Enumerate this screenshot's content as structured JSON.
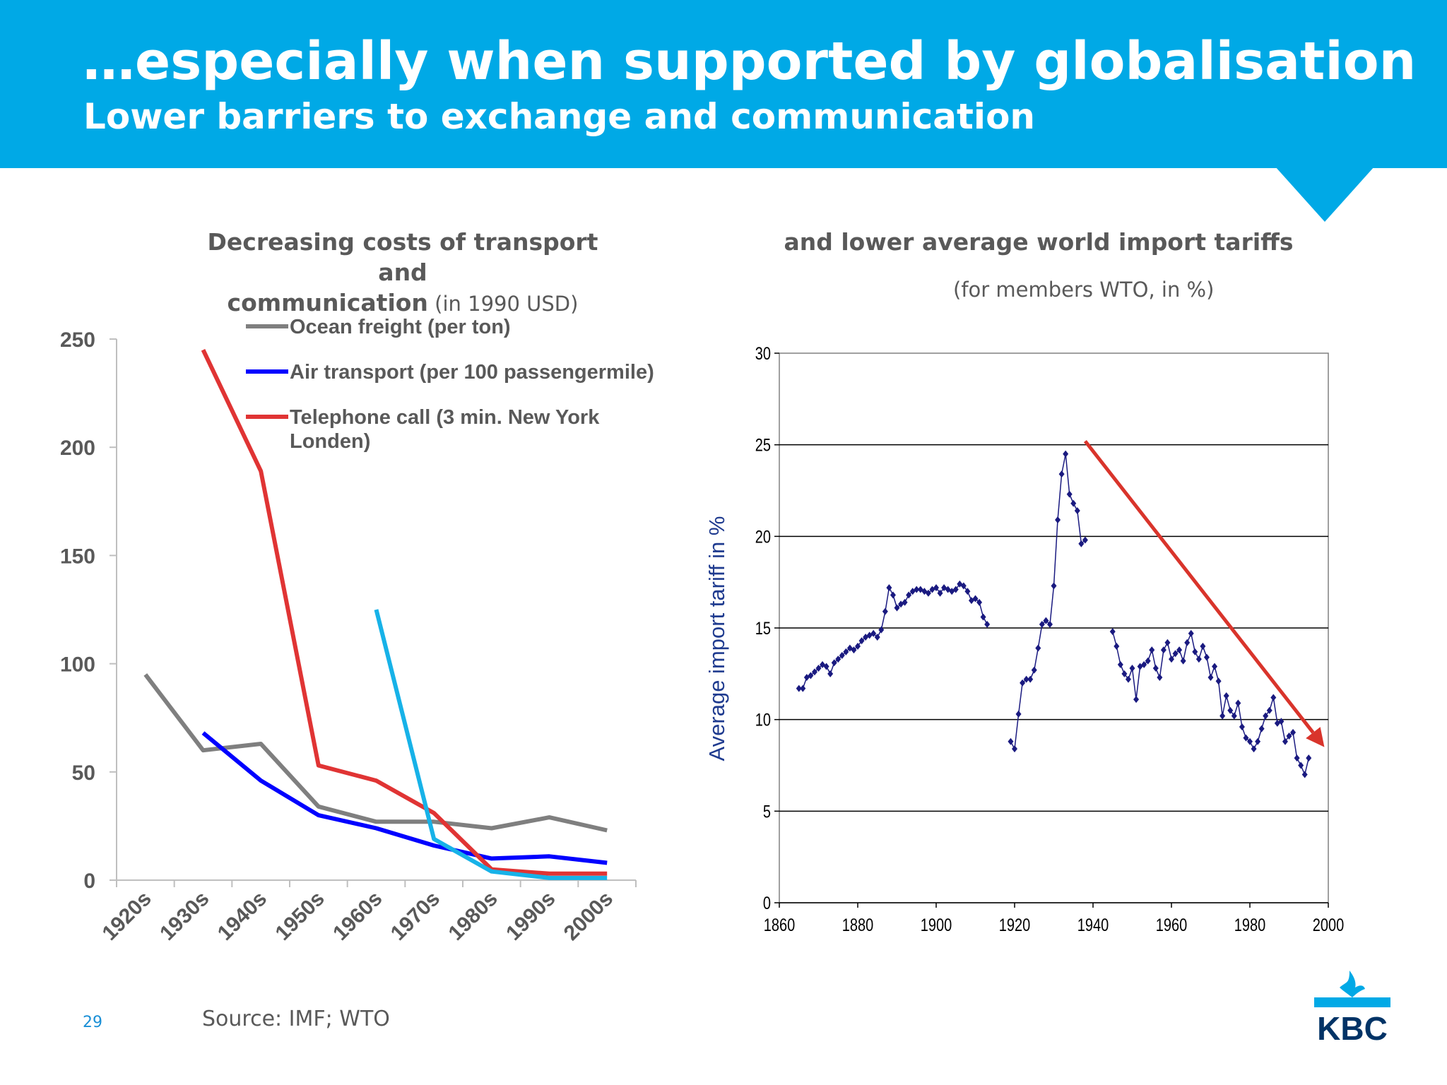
{
  "slide": {
    "title": "…especially when supported by globalisation",
    "subtitle": "Lower barriers to exchange and communication",
    "page_number": "29",
    "source": "Source: IMF; WTO",
    "logo_text": "KBC",
    "brand_color": "#00a9e6"
  },
  "left_chart": {
    "title_line1": "Decreasing costs of transport and",
    "title_line2_bold": "communication",
    "title_line2_light": " (in 1990 USD)"
  },
  "right_chart": {
    "title": "and lower average world import tariffs",
    "note": "(for members WTO, in %)",
    "ylabel": "Average import tariff in %",
    "trend_arrow_color": "#d9342b"
  },
  "chart_data": [
    {
      "type": "line",
      "categories": [
        "1920s",
        "1930s",
        "1940s",
        "1950s",
        "1960s",
        "1970s",
        "1980s",
        "1990s",
        "2000s"
      ],
      "y_ticks": [
        0,
        50,
        100,
        150,
        200,
        250
      ],
      "ylim": [
        0,
        250
      ],
      "legend_position": "top-left",
      "grid": false,
      "series": [
        {
          "name": "Ocean freight (per ton)",
          "color": "#7f7f7f",
          "values": [
            95,
            60,
            63,
            34,
            27,
            27,
            24,
            29,
            23
          ]
        },
        {
          "name": "Air transport (per 100 passengermile)",
          "color": "#0000ff",
          "values": [
            null,
            68,
            46,
            30,
            24,
            16,
            10,
            11,
            8
          ]
        },
        {
          "name": "Telephone call (3 min. New York Londen)",
          "color": "#e03434",
          "values": [
            null,
            245,
            189,
            53,
            46,
            31,
            5,
            3,
            3
          ]
        },
        {
          "name": "",
          "color": "#17b2e8",
          "values": [
            null,
            null,
            null,
            null,
            125,
            19,
            4,
            1,
            1
          ]
        }
      ]
    },
    {
      "type": "line",
      "x_ticks": [
        1860,
        1880,
        1900,
        1920,
        1940,
        1960,
        1980,
        2000
      ],
      "y_ticks": [
        0,
        5,
        10,
        15,
        20,
        25,
        30
      ],
      "xlim": [
        1860,
        2000
      ],
      "ylim": [
        0,
        30
      ],
      "grid": true,
      "series": [
        {
          "color": "#1a1a80",
          "points": [
            [
              1865,
              11.7
            ],
            [
              1866,
              11.7
            ],
            [
              1867,
              12.3
            ],
            [
              1868,
              12.4
            ],
            [
              1869,
              12.6
            ],
            [
              1870,
              12.8
            ],
            [
              1871,
              13.0
            ],
            [
              1872,
              12.9
            ],
            [
              1873,
              12.5
            ],
            [
              1874,
              13.1
            ],
            [
              1875,
              13.3
            ],
            [
              1876,
              13.5
            ],
            [
              1877,
              13.7
            ],
            [
              1878,
              13.9
            ],
            [
              1879,
              13.8
            ],
            [
              1880,
              14.0
            ],
            [
              1881,
              14.3
            ],
            [
              1882,
              14.5
            ],
            [
              1883,
              14.6
            ],
            [
              1884,
              14.7
            ],
            [
              1885,
              14.5
            ],
            [
              1886,
              14.9
            ],
            [
              1887,
              15.9
            ],
            [
              1888,
              17.2
            ],
            [
              1889,
              16.8
            ],
            [
              1890,
              16.1
            ],
            [
              1891,
              16.3
            ],
            [
              1892,
              16.4
            ],
            [
              1893,
              16.8
            ],
            [
              1894,
              17.0
            ],
            [
              1895,
              17.1
            ],
            [
              1896,
              17.1
            ],
            [
              1897,
              17.0
            ],
            [
              1898,
              16.9
            ],
            [
              1899,
              17.1
            ],
            [
              1900,
              17.2
            ],
            [
              1901,
              16.9
            ],
            [
              1902,
              17.2
            ],
            [
              1903,
              17.1
            ],
            [
              1904,
              17.0
            ],
            [
              1905,
              17.1
            ],
            [
              1906,
              17.4
            ],
            [
              1907,
              17.3
            ],
            [
              1908,
              17.0
            ],
            [
              1909,
              16.5
            ],
            [
              1910,
              16.6
            ],
            [
              1911,
              16.4
            ],
            [
              1912,
              15.6
            ],
            [
              1913,
              15.2
            ]
          ]
        },
        {
          "color": "#1a1a80",
          "points": [
            [
              1919,
              8.8
            ],
            [
              1920,
              8.4
            ],
            [
              1921,
              10.3
            ],
            [
              1922,
              12.0
            ],
            [
              1923,
              12.2
            ],
            [
              1924,
              12.2
            ],
            [
              1925,
              12.7
            ],
            [
              1926,
              13.9
            ],
            [
              1927,
              15.2
            ],
            [
              1928,
              15.4
            ],
            [
              1929,
              15.2
            ],
            [
              1930,
              17.3
            ],
            [
              1931,
              20.9
            ],
            [
              1932,
              23.4
            ],
            [
              1933,
              24.5
            ],
            [
              1934,
              22.3
            ],
            [
              1935,
              21.8
            ],
            [
              1936,
              21.4
            ],
            [
              1937,
              19.6
            ],
            [
              1938,
              19.8
            ]
          ]
        },
        {
          "color": "#1a1a80",
          "points": [
            [
              1945,
              14.8
            ],
            [
              1946,
              14.0
            ],
            [
              1947,
              13.0
            ],
            [
              1948,
              12.5
            ],
            [
              1949,
              12.2
            ],
            [
              1950,
              12.8
            ],
            [
              1951,
              11.1
            ],
            [
              1952,
              12.9
            ],
            [
              1953,
              13.0
            ],
            [
              1954,
              13.2
            ],
            [
              1955,
              13.8
            ],
            [
              1956,
              12.8
            ],
            [
              1957,
              12.3
            ],
            [
              1958,
              13.8
            ],
            [
              1959,
              14.2
            ],
            [
              1960,
              13.3
            ],
            [
              1961,
              13.6
            ],
            [
              1962,
              13.8
            ],
            [
              1963,
              13.2
            ],
            [
              1964,
              14.2
            ],
            [
              1965,
              14.7
            ],
            [
              1966,
              13.7
            ],
            [
              1967,
              13.3
            ],
            [
              1968,
              14.0
            ],
            [
              1969,
              13.4
            ],
            [
              1970,
              12.3
            ],
            [
              1971,
              12.9
            ],
            [
              1972,
              12.1
            ],
            [
              1973,
              10.2
            ],
            [
              1974,
              11.3
            ],
            [
              1975,
              10.5
            ],
            [
              1976,
              10.2
            ],
            [
              1977,
              10.9
            ],
            [
              1978,
              9.6
            ],
            [
              1979,
              9.0
            ],
            [
              1980,
              8.8
            ],
            [
              1981,
              8.4
            ],
            [
              1982,
              8.8
            ],
            [
              1983,
              9.5
            ],
            [
              1984,
              10.2
            ],
            [
              1985,
              10.5
            ],
            [
              1986,
              11.2
            ],
            [
              1987,
              9.8
            ],
            [
              1988,
              9.9
            ],
            [
              1989,
              8.8
            ],
            [
              1990,
              9.1
            ],
            [
              1991,
              9.3
            ],
            [
              1992,
              7.9
            ],
            [
              1993,
              7.5
            ],
            [
              1994,
              7.0
            ],
            [
              1995,
              7.9
            ]
          ]
        }
      ],
      "trend_arrow": {
        "from": [
          1938,
          25.2
        ],
        "to": [
          1999,
          8.5
        ]
      }
    }
  ]
}
